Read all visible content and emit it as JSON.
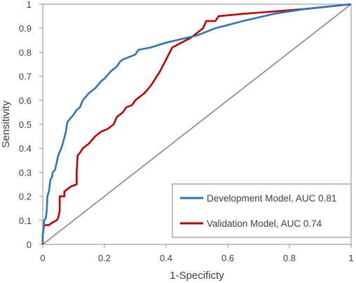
{
  "chart_data": {
    "type": "line",
    "title": "",
    "xlabel": "1-Specificty",
    "ylabel": "Sensitivity",
    "xlim": [
      0,
      1
    ],
    "ylim": [
      0,
      1
    ],
    "x_ticks": [
      "0",
      "0.2",
      "0.4",
      "0.6",
      "0.8",
      "1"
    ],
    "y_ticks": [
      "0",
      "0.1",
      "0.2",
      "0.3",
      "0.4",
      "0.5",
      "0.6",
      "0.7",
      "0.8",
      "0.9",
      "1"
    ],
    "grid": false,
    "legend_position": "bottom-right",
    "series": [
      {
        "name": "Development Model, AUC 0.81",
        "color": "#2E75B6",
        "points": [
          [
            0,
            0
          ],
          [
            0,
            0.04
          ],
          [
            0.003,
            0.07
          ],
          [
            0.005,
            0.1
          ],
          [
            0.01,
            0.11
          ],
          [
            0.013,
            0.14
          ],
          [
            0.015,
            0.2
          ],
          [
            0.02,
            0.22
          ],
          [
            0.023,
            0.25
          ],
          [
            0.025,
            0.27
          ],
          [
            0.03,
            0.28
          ],
          [
            0.032,
            0.3
          ],
          [
            0.04,
            0.31
          ],
          [
            0.045,
            0.34
          ],
          [
            0.05,
            0.37
          ],
          [
            0.06,
            0.4
          ],
          [
            0.065,
            0.42
          ],
          [
            0.075,
            0.47
          ],
          [
            0.08,
            0.51
          ],
          [
            0.1,
            0.54
          ],
          [
            0.11,
            0.56
          ],
          [
            0.12,
            0.57
          ],
          [
            0.13,
            0.6
          ],
          [
            0.15,
            0.63
          ],
          [
            0.17,
            0.65
          ],
          [
            0.19,
            0.68
          ],
          [
            0.2,
            0.69
          ],
          [
            0.22,
            0.72
          ],
          [
            0.24,
            0.74
          ],
          [
            0.25,
            0.76
          ],
          [
            0.26,
            0.77
          ],
          [
            0.28,
            0.78
          ],
          [
            0.3,
            0.79
          ],
          [
            0.31,
            0.81
          ],
          [
            0.35,
            0.82
          ],
          [
            0.4,
            0.84
          ],
          [
            0.5,
            0.87
          ],
          [
            0.56,
            0.9
          ],
          [
            0.65,
            0.93
          ],
          [
            0.75,
            0.96
          ],
          [
            0.85,
            0.98
          ],
          [
            1,
            1
          ]
        ]
      },
      {
        "name": "Validation Model, AUC 0.74",
        "color": "#C00000",
        "points": [
          [
            0,
            0
          ],
          [
            0,
            0.04
          ],
          [
            0.003,
            0.07
          ],
          [
            0.006,
            0.08
          ],
          [
            0.02,
            0.08
          ],
          [
            0.03,
            0.09
          ],
          [
            0.045,
            0.1
          ],
          [
            0.05,
            0.11
          ],
          [
            0.055,
            0.14
          ],
          [
            0.055,
            0.2
          ],
          [
            0.07,
            0.2
          ],
          [
            0.07,
            0.22
          ],
          [
            0.08,
            0.23
          ],
          [
            0.09,
            0.24
          ],
          [
            0.11,
            0.25
          ],
          [
            0.11,
            0.3
          ],
          [
            0.113,
            0.37
          ],
          [
            0.12,
            0.38
          ],
          [
            0.13,
            0.4
          ],
          [
            0.15,
            0.42
          ],
          [
            0.17,
            0.45
          ],
          [
            0.19,
            0.47
          ],
          [
            0.21,
            0.48
          ],
          [
            0.23,
            0.5
          ],
          [
            0.24,
            0.53
          ],
          [
            0.26,
            0.55
          ],
          [
            0.27,
            0.57
          ],
          [
            0.29,
            0.58
          ],
          [
            0.3,
            0.6
          ],
          [
            0.32,
            0.62
          ],
          [
            0.33,
            0.63
          ],
          [
            0.35,
            0.66
          ],
          [
            0.38,
            0.72
          ],
          [
            0.4,
            0.77
          ],
          [
            0.42,
            0.82
          ],
          [
            0.45,
            0.84
          ],
          [
            0.48,
            0.86
          ],
          [
            0.5,
            0.88
          ],
          [
            0.52,
            0.9
          ],
          [
            0.53,
            0.93
          ],
          [
            0.56,
            0.93
          ],
          [
            0.57,
            0.95
          ],
          [
            0.65,
            0.96
          ],
          [
            0.75,
            0.97
          ],
          [
            0.85,
            0.98
          ],
          [
            1,
            1
          ]
        ]
      },
      {
        "name": "",
        "color": "#808080",
        "points": [
          [
            0,
            0
          ],
          [
            1,
            1
          ]
        ]
      }
    ]
  }
}
